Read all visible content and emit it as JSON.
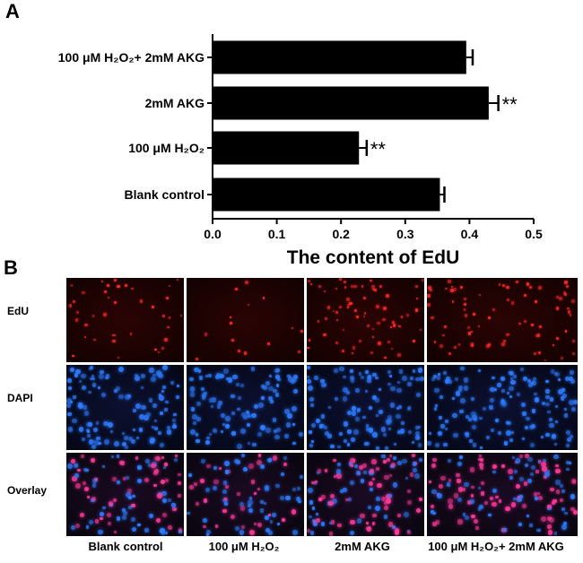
{
  "panel_a": {
    "letter": "A"
  },
  "panel_b": {
    "letter": "B",
    "row_labels": [
      "EdU",
      "DAPI",
      "Overlay"
    ],
    "column_labels": [
      "Blank control",
      "100 μM H₂O₂",
      "2mM AKG",
      "100 μM H₂O₂+ 2mM AKG"
    ],
    "cell_density": [
      [
        0.55,
        0.22,
        0.95,
        0.85
      ],
      [
        1.0,
        0.9,
        1.0,
        0.95
      ],
      [
        0.9,
        0.75,
        1.0,
        0.95
      ]
    ],
    "colors": {
      "edu": "#ff2a2a",
      "dapi": "#2f7bff",
      "overlay": "#ff3a9a"
    }
  },
  "chart_data": {
    "type": "bar",
    "orientation": "horizontal",
    "categories": [
      "100 μM H₂O₂+ 2mM AKG",
      "2mM AKG",
      "100 μM H₂O₂",
      "Blank control"
    ],
    "values": [
      0.395,
      0.43,
      0.228,
      0.354
    ],
    "errors": [
      0.01,
      0.015,
      0.012,
      0.007
    ],
    "annotations": [
      "",
      "**",
      "**",
      ""
    ],
    "xlabel": "The content of EdU",
    "ylabel": "",
    "xlim": [
      0,
      0.5
    ],
    "xticks": [
      0.0,
      0.1,
      0.2,
      0.3,
      0.4,
      0.5
    ],
    "xtick_labels": [
      "0.0",
      "0.1",
      "0.2",
      "0.3",
      "0.4",
      "0.5"
    ],
    "bar_color": "#000000",
    "grid": false,
    "legend": "none"
  }
}
